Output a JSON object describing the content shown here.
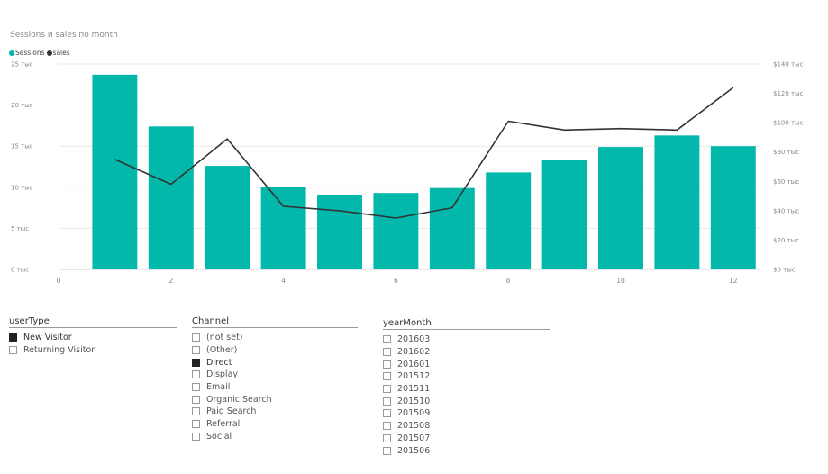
{
  "chart_data": {
    "type": "bar+line",
    "title": "Sessions и sales по month",
    "legend": [
      {
        "name": "Sessions",
        "color": "#01B8AA"
      },
      {
        "name": "sales",
        "color": "#333333"
      }
    ],
    "x": [
      1,
      2,
      3,
      4,
      5,
      6,
      7,
      8,
      9,
      10,
      11,
      12
    ],
    "x_ticks": [
      "0",
      "2",
      "4",
      "6",
      "8",
      "10",
      "12"
    ],
    "xlim": [
      0,
      12.5
    ],
    "series": [
      {
        "name": "Sessions",
        "type": "bar",
        "axis": "left",
        "color": "#01B8AA",
        "values": [
          23700,
          17400,
          12600,
          10000,
          9100,
          9300,
          9900,
          11800,
          13300,
          14900,
          16300,
          15000
        ]
      },
      {
        "name": "sales",
        "type": "line",
        "axis": "right",
        "color": "#333333",
        "values": [
          75000,
          58000,
          89000,
          43000,
          40000,
          35000,
          42000,
          101000,
          95000,
          96000,
          95000,
          124000
        ]
      }
    ],
    "y_left": {
      "ylim": [
        0,
        25000
      ],
      "ticks": [
        "0 тыс",
        "5 тыс",
        "10 тыс",
        "15 тыс",
        "20 тыс",
        "25 тыс"
      ]
    },
    "y_right": {
      "ylim": [
        0,
        140000
      ],
      "ticks": [
        "$0 тыс",
        "$20 тыс",
        "$40 тыс",
        "$60 тыс",
        "$80 тыс",
        "$100 тыс",
        "$120 тыс",
        "$140 тыс"
      ]
    },
    "grid": true,
    "legend_placement": "top-left"
  },
  "slicers": {
    "usertype": {
      "header": "userType",
      "items": [
        {
          "label": "New Visitor",
          "selected": true
        },
        {
          "label": "Returning Visitor",
          "selected": false
        }
      ]
    },
    "channel": {
      "header": "Channel",
      "items": [
        {
          "label": "(not set)",
          "selected": false
        },
        {
          "label": "(Other)",
          "selected": false
        },
        {
          "label": "Direct",
          "selected": true
        },
        {
          "label": "Display",
          "selected": false
        },
        {
          "label": "Email",
          "selected": false
        },
        {
          "label": "Organic Search",
          "selected": false
        },
        {
          "label": "Paid Search",
          "selected": false
        },
        {
          "label": "Referral",
          "selected": false
        },
        {
          "label": "Social",
          "selected": false
        }
      ]
    },
    "yearmonth": {
      "header": "yearMonth",
      "items": [
        {
          "label": "201603",
          "selected": false
        },
        {
          "label": "201602",
          "selected": false
        },
        {
          "label": "201601",
          "selected": false
        },
        {
          "label": "201512",
          "selected": false
        },
        {
          "label": "201511",
          "selected": false
        },
        {
          "label": "201510",
          "selected": false
        },
        {
          "label": "201509",
          "selected": false
        },
        {
          "label": "201508",
          "selected": false
        },
        {
          "label": "201507",
          "selected": false
        },
        {
          "label": "201506",
          "selected": false
        }
      ]
    }
  }
}
